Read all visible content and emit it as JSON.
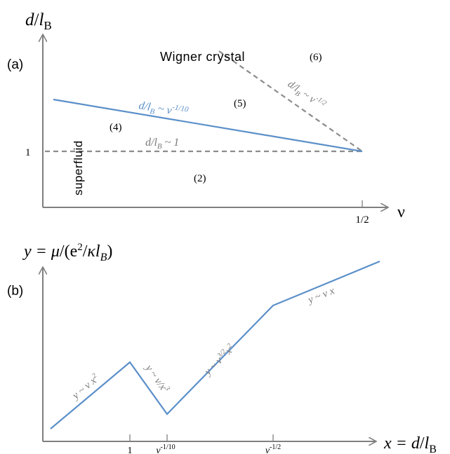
{
  "panel_a": {
    "panel_label": "(a)",
    "y_axis_label": {
      "d": "d",
      "slash": "/",
      "l": "l",
      "sub": "B"
    },
    "x_axis_label": "ν",
    "y_tick": "1",
    "x_tick": "1/2",
    "phases": {
      "wigner": "Wigner crystal",
      "superfluid": "superfluid",
      "r2": "(2)",
      "r4": "(4)",
      "r5": "(5)",
      "r6": "(6)"
    },
    "lines": {
      "blue": {
        "pre": "d/l",
        "sub": "B",
        "mid": " ~ ν",
        "sup": "-1/10"
      },
      "dash_h": {
        "pre": "d/l",
        "sub": "B",
        "mid": " ~ 1"
      },
      "dash_d": {
        "pre": "d/l",
        "sub": "B",
        "mid": " ~ ν",
        "sup": "-1/2"
      }
    },
    "colors": {
      "blue": "#5b8fc9",
      "dash": "#8c8c8c"
    }
  },
  "panel_b": {
    "panel_label": "(b)",
    "y_axis_label": {
      "pre": "y = ",
      "mu": "μ",
      "open": "/(e",
      "sup": "2",
      "slash": "/",
      "kappa": "κl",
      "sub": "B",
      "close": ")"
    },
    "x_axis_label": {
      "pre": "x = ",
      "d": "d",
      "slash": "/",
      "l": "l",
      "sub": "B"
    },
    "x_ticks": [
      {
        "base": "1",
        "sup": ""
      },
      {
        "base": "ν",
        "sup": "-1/10"
      },
      {
        "base": "ν",
        "sup": "-1/2"
      }
    ],
    "segments": [
      {
        "pre": "y ~ ν x",
        "sup": "2",
        "post": ""
      },
      {
        "pre": "y ~ ν/x",
        "sup": "3",
        "post": ""
      },
      {
        "pre": "y ~ ν",
        "sup": "3/2",
        "post": "x",
        "sup2": "2"
      },
      {
        "pre": "y ~ ν x",
        "sup": "",
        "post": ""
      }
    ]
  }
}
